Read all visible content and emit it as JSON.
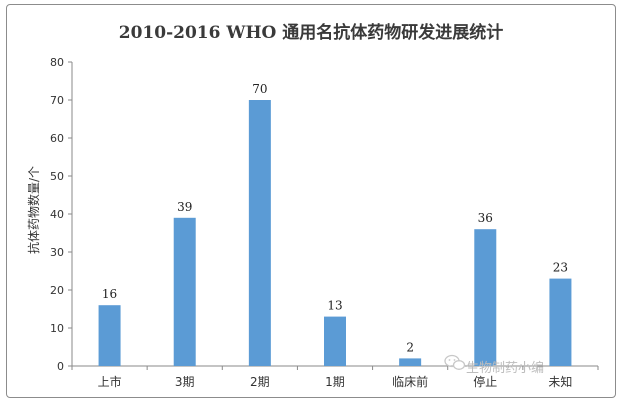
{
  "chart_data": {
    "type": "bar",
    "title": "2010-2016 WHO 通用名抗体药物研发进展统计",
    "xlabel": "",
    "ylabel": "抗体药物数量/个",
    "categories": [
      "上市",
      "3期",
      "2期",
      "1期",
      "临床前",
      "停止",
      "未知"
    ],
    "values": [
      16,
      39,
      70,
      13,
      2,
      36,
      23
    ],
    "ylim": [
      0,
      80
    ],
    "yticks": [
      "0",
      "10",
      "20",
      "30",
      "40",
      "50",
      "60",
      "70",
      "80"
    ],
    "grid": false,
    "legend": "none",
    "bar_color": "#5b9bd5"
  },
  "watermark": {
    "text": "生物制药小编",
    "icon": "wechat-icon"
  }
}
